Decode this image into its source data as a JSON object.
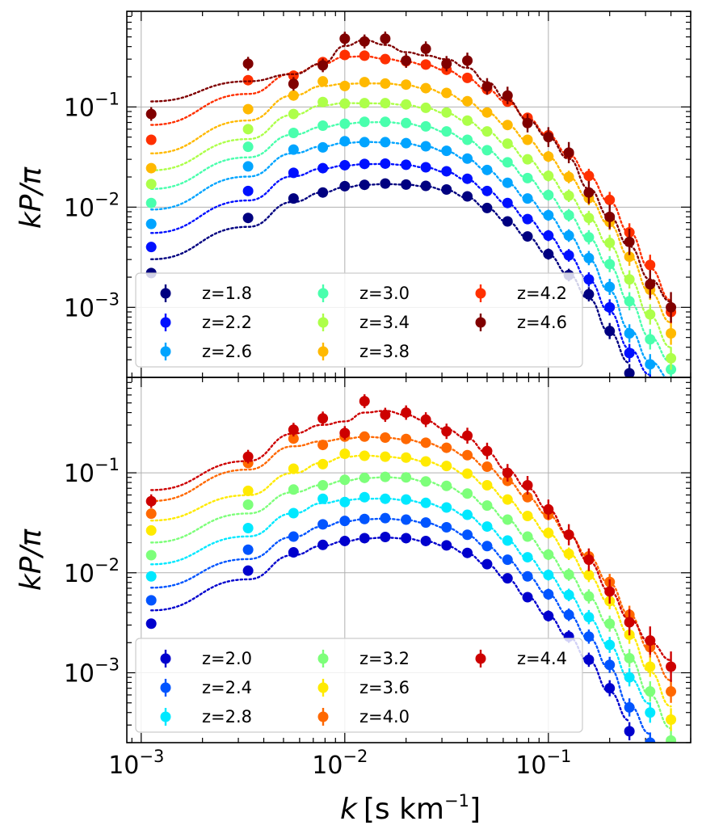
{
  "chart_data": [
    {
      "type": "scatter",
      "panel": "top",
      "ylabel": "kP/π",
      "xlabel": "",
      "xscale": "log",
      "yscale": "log",
      "xlim": [
        0.00085,
        0.5
      ],
      "ylim": [
        0.0002,
        0.9
      ],
      "grid": true,
      "legend": {
        "placement": "lower-left",
        "columns": 3
      },
      "x": [
        0.00112,
        0.00335,
        0.0056,
        0.0078,
        0.01,
        0.0125,
        0.0158,
        0.02,
        0.025,
        0.0316,
        0.04,
        0.05,
        0.063,
        0.079,
        0.1,
        0.126,
        0.158,
        0.2,
        0.25,
        0.316,
        0.4
      ],
      "series": [
        {
          "name": "z=1.8",
          "color": "#000080",
          "values": [
            0.0022,
            0.0078,
            0.0122,
            0.014,
            0.0162,
            0.0167,
            0.0172,
            0.0168,
            0.0163,
            0.015,
            0.0128,
            0.0098,
            0.0072,
            0.0051,
            0.0034,
            0.0021,
            0.00135,
            0.00058,
            0.00022,
            null,
            null
          ]
        },
        {
          "name": "z=2.2",
          "color": "#0010ff",
          "values": [
            0.004,
            0.0145,
            0.022,
            0.0245,
            0.0262,
            0.027,
            0.0272,
            0.0265,
            0.025,
            0.0228,
            0.0192,
            0.0145,
            0.011,
            0.0076,
            0.0052,
            0.0033,
            0.0019,
            0.001,
            0.00035,
            0.00018,
            null
          ]
        },
        {
          "name": "z=2.6",
          "color": "#00a4ff",
          "values": [
            0.0068,
            0.0255,
            0.0375,
            0.0395,
            0.0455,
            0.0445,
            0.0445,
            0.0435,
            0.0405,
            0.0365,
            0.0305,
            0.0235,
            0.0175,
            0.0122,
            0.0083,
            0.0052,
            0.0031,
            0.0016,
            0.00055,
            0.00027,
            0.00017
          ]
        },
        {
          "name": "z=3.0",
          "color": "#49ffad",
          "values": [
            0.011,
            0.04,
            0.055,
            0.065,
            0.068,
            0.071,
            0.071,
            0.069,
            0.064,
            0.057,
            0.047,
            0.037,
            0.028,
            0.0195,
            0.0132,
            0.0083,
            0.005,
            0.0027,
            0.00115,
            0.00048,
            0.00024
          ]
        },
        {
          "name": "z=3.4",
          "color": "#adff49",
          "values": [
            0.017,
            0.06,
            0.085,
            0.112,
            0.108,
            0.109,
            0.109,
            0.106,
            0.098,
            0.088,
            0.073,
            0.057,
            0.043,
            0.03,
            0.0205,
            0.013,
            0.0078,
            0.0044,
            0.0019,
            0.00085,
            0.00031
          ]
        },
        {
          "name": "z=3.8",
          "color": "#ffb900",
          "values": [
            0.0245,
            0.095,
            0.13,
            0.18,
            0.162,
            0.177,
            0.171,
            0.167,
            0.154,
            0.138,
            0.114,
            0.088,
            0.066,
            0.047,
            0.032,
            0.02,
            0.0123,
            0.0071,
            0.0032,
            0.0015,
            0.00055
          ]
        },
        {
          "name": "z=4.2",
          "color": "#ff3000",
          "values": [
            0.047,
            0.185,
            0.205,
            0.28,
            0.33,
            0.325,
            0.3,
            0.285,
            0.265,
            0.235,
            0.195,
            0.15,
            0.113,
            0.078,
            0.052,
            0.034,
            0.0205,
            0.0118,
            0.0056,
            0.00265,
            0.0009
          ]
        },
        {
          "name": "z=4.6",
          "color": "#800000",
          "values": [
            0.085,
            0.27,
            0.17,
            0.26,
            0.48,
            0.45,
            0.48,
            0.29,
            0.38,
            0.27,
            0.29,
            0.16,
            0.13,
            0.069,
            0.05,
            0.035,
            0.014,
            0.008,
            0.0045,
            0.0017,
            0.001
          ]
        }
      ]
    },
    {
      "type": "scatter",
      "panel": "bottom",
      "ylabel": "kP/π",
      "xlabel": "k [s km⁻¹]",
      "xscale": "log",
      "yscale": "log",
      "xlim": [
        0.00085,
        0.5
      ],
      "ylim": [
        0.0002,
        0.9
      ],
      "grid": true,
      "legend": {
        "placement": "lower-left",
        "columns": 3
      },
      "x": [
        0.00112,
        0.00335,
        0.0056,
        0.0078,
        0.01,
        0.0125,
        0.0158,
        0.02,
        0.025,
        0.0316,
        0.04,
        0.05,
        0.063,
        0.079,
        0.1,
        0.126,
        0.158,
        0.2,
        0.25,
        0.316,
        0.4
      ],
      "series": [
        {
          "name": "z=2.0",
          "color": "#0000cd",
          "values": [
            0.0031,
            0.0105,
            0.016,
            0.019,
            0.0208,
            0.0222,
            0.0228,
            0.0222,
            0.0208,
            0.0188,
            0.0158,
            0.0122,
            0.0088,
            0.0057,
            0.0037,
            0.0023,
            0.00135,
            0.0007,
            0.00026,
            null,
            null
          ]
        },
        {
          "name": "z=2.4",
          "color": "#0054ff",
          "values": [
            0.0053,
            0.017,
            0.023,
            0.0305,
            0.033,
            0.0345,
            0.0352,
            0.034,
            0.0318,
            0.0285,
            0.024,
            0.0185,
            0.0135,
            0.0092,
            0.0061,
            0.0038,
            0.0023,
            0.0012,
            0.00045,
            0.0002,
            null
          ]
        },
        {
          "name": "z=2.8",
          "color": "#00e8ff",
          "values": [
            0.0092,
            0.028,
            0.0395,
            0.055,
            0.051,
            0.057,
            0.055,
            0.054,
            0.05,
            0.045,
            0.038,
            0.029,
            0.021,
            0.0143,
            0.0095,
            0.006,
            0.0036,
            0.0019,
            0.0009,
            0.0004,
            null
          ]
        },
        {
          "name": "z=3.2",
          "color": "#7dff7a",
          "values": [
            0.015,
            0.048,
            0.068,
            0.075,
            0.085,
            0.089,
            0.091,
            0.09,
            0.082,
            0.074,
            0.062,
            0.047,
            0.034,
            0.023,
            0.0152,
            0.0096,
            0.0058,
            0.0031,
            0.0014,
            0.00065,
            0.00021
          ]
        },
        {
          "name": "z=3.6",
          "color": "#ffea00",
          "values": [
            0.0265,
            0.066,
            0.11,
            0.122,
            0.155,
            0.148,
            0.145,
            0.142,
            0.13,
            0.117,
            0.098,
            0.075,
            0.054,
            0.037,
            0.025,
            0.0155,
            0.0095,
            0.0052,
            0.0024,
            0.00115,
            0.00034
          ]
        },
        {
          "name": "z=4.0",
          "color": "#ff6800",
          "values": [
            0.039,
            0.125,
            0.22,
            0.19,
            0.23,
            0.23,
            0.225,
            0.218,
            0.2,
            0.178,
            0.15,
            0.115,
            0.083,
            0.057,
            0.038,
            0.024,
            0.0146,
            0.0081,
            0.0038,
            0.0018,
            0.00065
          ]
        },
        {
          "name": "z=4.4",
          "color": "#cd0000",
          "values": [
            0.052,
            0.145,
            0.27,
            0.35,
            0.25,
            0.52,
            0.38,
            0.4,
            0.34,
            0.26,
            0.235,
            0.165,
            0.1,
            0.075,
            0.043,
            0.024,
            0.0135,
            0.0065,
            0.0032,
            0.0021,
            0.00115
          ]
        }
      ]
    }
  ],
  "axes": {
    "x_ticks": [
      {
        "base": "10",
        "exp": "−3"
      },
      {
        "base": "10",
        "exp": "−2"
      },
      {
        "base": "10",
        "exp": "−1"
      }
    ],
    "y_ticks": [
      {
        "base": "10",
        "exp": "−3"
      },
      {
        "base": "10",
        "exp": "−2"
      },
      {
        "base": "10",
        "exp": "−1"
      }
    ],
    "ylabel_main": "kP/π",
    "xlabel_k": "k",
    "xlabel_unit": "[s km",
    "xlabel_exp": "−1",
    "xlabel_close": "]"
  }
}
